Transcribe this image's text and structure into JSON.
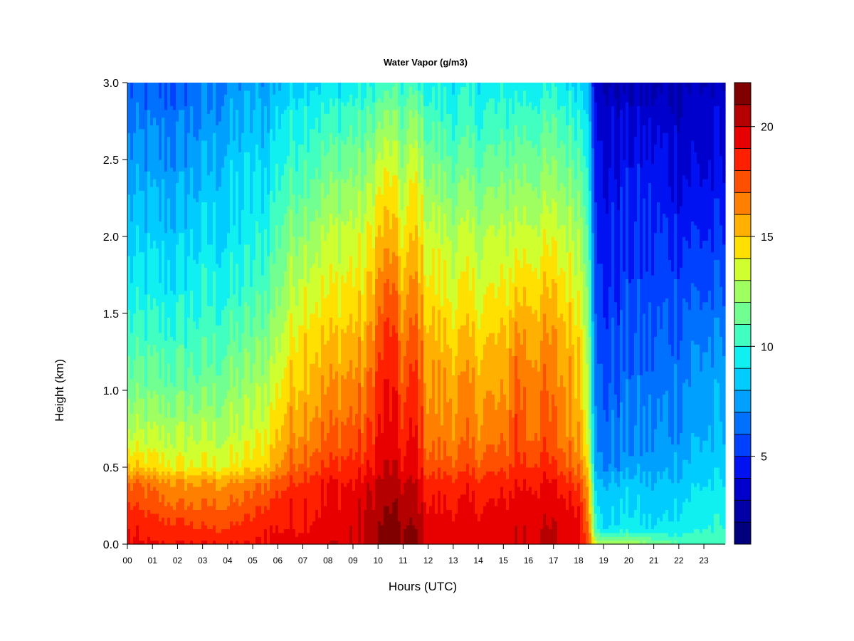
{
  "chart_data": {
    "type": "heatmap",
    "title": "Water Vapor (g/m3)",
    "xlabel": "Hours (UTC)",
    "ylabel": "Height (km)",
    "x_range": [
      0,
      23.85
    ],
    "y_range": [
      0,
      3.0
    ],
    "x_ticks": [
      "00",
      "01",
      "02",
      "03",
      "04",
      "05",
      "06",
      "07",
      "08",
      "09",
      "10",
      "11",
      "12",
      "13",
      "14",
      "15",
      "16",
      "17",
      "18",
      "19",
      "20",
      "21",
      "22",
      "23"
    ],
    "y_ticks": [
      "0.0",
      "0.5",
      "1.0",
      "1.5",
      "2.0",
      "2.5",
      "3.0"
    ],
    "colorbar": {
      "min": 1,
      "max": 22,
      "levels": 21,
      "ticks": [
        "5",
        "10",
        "15",
        "20"
      ],
      "colors": [
        "#00007F",
        "#0000A6",
        "#0000CC",
        "#0012F2",
        "#0040FF",
        "#0070FF",
        "#00A0FF",
        "#00CCFF",
        "#10F0F0",
        "#40FFC0",
        "#70FF90",
        "#A0FF60",
        "#D0FF30",
        "#FFE000",
        "#FFB000",
        "#FF8000",
        "#FF5000",
        "#FF2000",
        "#E80000",
        "#B40000",
        "#800000"
      ]
    },
    "grid": false,
    "x_hours": [
      0,
      1,
      2,
      3,
      4,
      5,
      5.5,
      6,
      6.5,
      7,
      8,
      9,
      9.5,
      10,
      10.5,
      11,
      11.5,
      12,
      13,
      14,
      15,
      15.5,
      16,
      16.5,
      17,
      18,
      18.4,
      18.7,
      19,
      20,
      21,
      22,
      23,
      23.85
    ],
    "y_km": [
      0,
      0.1,
      0.25,
      0.4,
      0.5,
      0.7,
      1.0,
      1.3,
      1.6,
      2.0,
      2.4,
      2.8,
      3.0
    ],
    "values": [
      [
        19,
        19,
        18,
        17,
        15,
        13,
        11.5,
        10.5,
        9.5,
        8.5,
        7.5,
        6.5,
        6
      ],
      [
        19,
        18.5,
        17.5,
        16.5,
        14.5,
        13,
        11.5,
        10.5,
        9.5,
        8.5,
        7.5,
        6.5,
        6
      ],
      [
        19,
        18.5,
        17,
        16,
        14,
        13,
        11.5,
        10.5,
        9.5,
        8.5,
        7.5,
        6.5,
        6
      ],
      [
        19,
        18,
        17,
        16,
        14,
        13,
        11.5,
        10.5,
        10,
        9,
        8,
        7,
        6.5
      ],
      [
        19,
        18,
        17,
        16,
        14,
        13,
        12,
        11,
        10,
        9,
        8.5,
        7.5,
        7
      ],
      [
        19,
        18.5,
        17.5,
        16.5,
        14.5,
        13.5,
        12.5,
        11.5,
        10.5,
        9.5,
        9,
        8,
        7.5
      ],
      [
        19,
        19,
        18,
        17,
        15,
        14,
        13,
        12,
        11,
        10,
        9,
        8,
        7.5
      ],
      [
        19.5,
        19,
        18.5,
        17.5,
        16,
        15,
        14,
        13,
        12,
        11,
        10,
        9,
        8
      ],
      [
        19.5,
        19,
        19,
        18,
        17,
        16,
        15,
        14,
        13,
        12,
        10.5,
        9.5,
        8.5
      ],
      [
        19.5,
        19,
        19,
        18.5,
        17.5,
        16.5,
        15.5,
        15,
        14,
        12.5,
        11,
        10,
        9
      ],
      [
        20,
        19.5,
        19,
        19,
        18,
        17,
        16,
        15,
        14,
        13,
        11.5,
        10,
        9
      ],
      [
        20,
        20,
        19.5,
        19,
        18.5,
        17.5,
        16.5,
        15.5,
        14.5,
        13.5,
        12,
        10.5,
        9.5
      ],
      [
        20,
        20,
        20,
        19.5,
        18.5,
        17.5,
        16.5,
        15.5,
        14.5,
        13.5,
        12,
        10.5,
        9.5
      ],
      [
        21,
        21,
        20.5,
        20,
        19.5,
        19,
        18.5,
        17.5,
        16.5,
        15,
        13.5,
        11.5,
        10
      ],
      [
        21.5,
        21.5,
        21,
        20.5,
        20,
        19.5,
        19,
        18.5,
        17.5,
        15.5,
        14,
        12,
        10.5
      ],
      [
        21,
        21,
        20.5,
        20,
        19,
        18.5,
        17.5,
        16.5,
        15.5,
        14,
        12.5,
        11,
        10
      ],
      [
        21,
        21,
        20.5,
        20,
        19.5,
        19,
        18.5,
        17.5,
        16.5,
        15,
        14,
        12,
        10.5
      ],
      [
        19.5,
        19.5,
        19,
        18.5,
        17.5,
        16.5,
        16,
        15.5,
        14.5,
        13.5,
        12,
        10.5,
        9.5
      ],
      [
        19.5,
        19.5,
        19,
        18.5,
        17.5,
        16.5,
        16,
        15,
        14,
        13,
        11.5,
        10,
        9.5
      ],
      [
        19.5,
        19.5,
        19,
        18.5,
        17.5,
        16.5,
        16,
        15,
        14,
        13,
        11.5,
        10,
        9.5
      ],
      [
        19.5,
        19.5,
        19,
        18.5,
        17.5,
        16.5,
        15.5,
        15,
        14,
        13,
        11.5,
        10,
        9.5
      ],
      [
        20,
        20,
        19.5,
        19,
        18.5,
        18,
        17.5,
        16.5,
        15,
        13.5,
        12,
        10.5,
        9.5
      ],
      [
        20,
        20,
        19.5,
        19,
        18,
        17,
        16.5,
        16,
        15,
        13.5,
        12,
        10.5,
        9.5
      ],
      [
        20,
        20,
        19.5,
        19,
        18.5,
        17.5,
        17,
        16,
        15,
        13.5,
        12,
        10.5,
        9.5
      ],
      [
        20,
        20,
        19.5,
        19,
        18,
        17,
        16.5,
        16,
        15,
        13.5,
        12,
        10.5,
        9.5
      ],
      [
        19.5,
        19.5,
        19,
        18,
        17,
        16,
        15.5,
        15,
        14,
        13,
        11.5,
        10,
        9
      ],
      [
        18,
        17,
        16.5,
        16,
        15,
        14,
        13.5,
        13,
        12.5,
        11.5,
        10.5,
        9.5,
        8.5
      ],
      [
        13,
        10,
        9,
        8,
        7,
        6.5,
        6,
        5.5,
        5,
        4.5,
        4,
        3.5,
        3
      ],
      [
        13,
        9,
        8.5,
        8,
        7,
        6.5,
        6,
        5.5,
        5,
        4.5,
        4,
        3.5,
        3
      ],
      [
        13,
        9.5,
        9,
        8.5,
        7.5,
        7,
        6.5,
        6,
        5.5,
        5,
        4.5,
        3.5,
        3
      ],
      [
        12,
        9,
        8.5,
        8,
        7.5,
        7,
        6.5,
        6,
        5.5,
        5,
        4.5,
        3.5,
        2.5
      ],
      [
        11,
        9.5,
        9,
        8.5,
        8,
        7.5,
        7,
        6.5,
        6,
        5,
        4,
        3.5,
        3
      ],
      [
        10.5,
        10,
        9.5,
        9,
        8.5,
        8,
        7.5,
        7,
        6,
        5,
        4,
        3.5,
        3
      ],
      [
        10.5,
        10,
        9.5,
        9,
        8.5,
        8,
        7.5,
        7,
        6,
        5,
        4,
        3.5,
        3
      ]
    ]
  }
}
